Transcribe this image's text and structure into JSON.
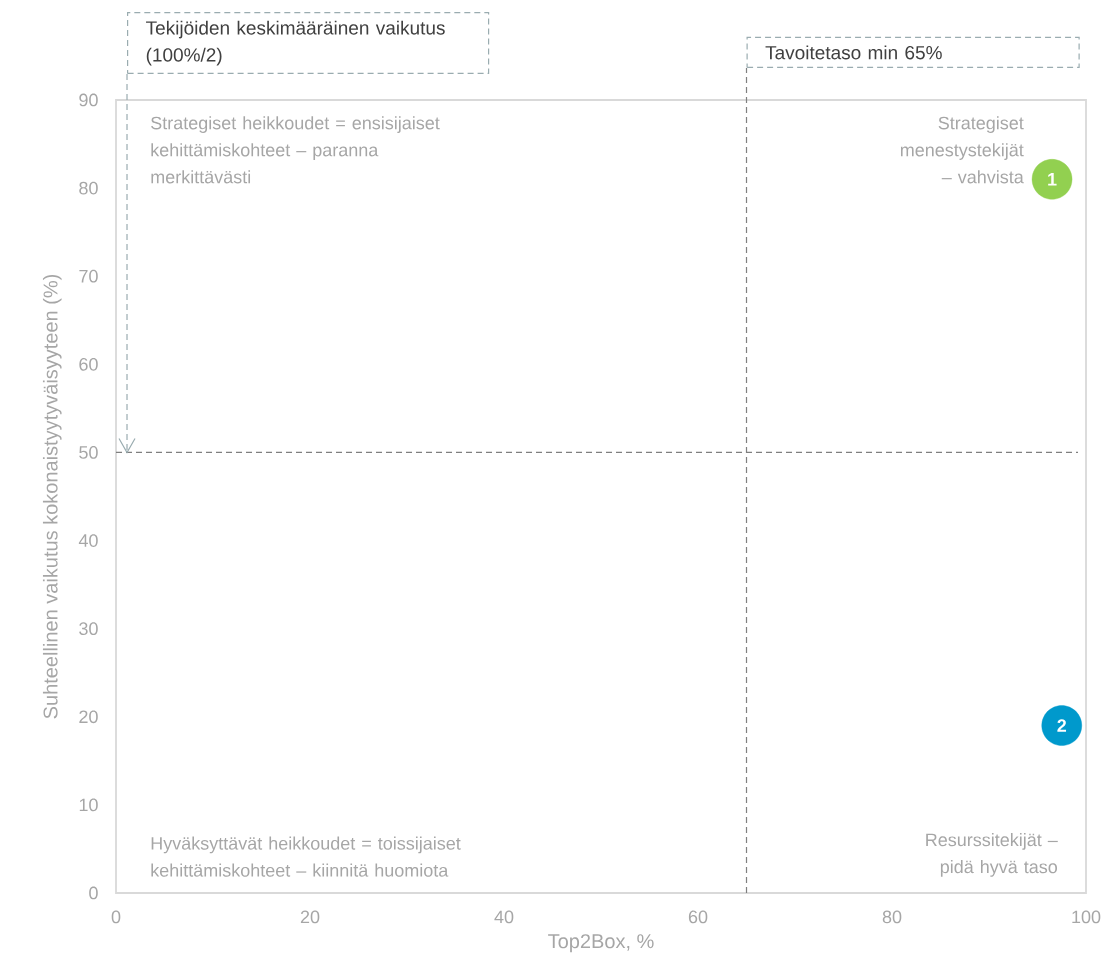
{
  "chart_data": {
    "type": "scatter",
    "xlabel": "Top2Box, %",
    "ylabel": "Suhteellinen vaikutus kokonaistyytyväisyyteen (%)",
    "xlim": [
      0,
      100
    ],
    "ylim": [
      0,
      90
    ],
    "xticks": [
      0,
      20,
      40,
      60,
      80,
      100
    ],
    "yticks": [
      0,
      10,
      20,
      30,
      40,
      50,
      60,
      70,
      80,
      90
    ],
    "grid": false,
    "marker": "circle",
    "series": [
      {
        "x": [
          96.5,
          97.5
        ],
        "values": [
          81,
          19
        ],
        "colors": [
          "#92d050",
          "#0099cc"
        ]
      }
    ],
    "annotations": [
      {
        "text": "1",
        "x": 96.5,
        "y": 81
      },
      {
        "text": "2",
        "x": 97.5,
        "y": 19
      },
      "Strategiset heikkoudet = ensisijaiset kehittämiskohteet – paranna merkittävästi",
      "Strategiset menestystekijät – vahvista",
      "Hyväksyttävät heikkoudet = toissijaiset kehittämiskohteet – kiinnitä huomiota",
      "Resurssitekijät – pidä hyvä taso"
    ],
    "ref_lines": [
      {
        "axis": "y",
        "value": 50,
        "label": "Tekijöiden keskimääräinen vaikutus (100%/2)",
        "color": "#7f7f7f",
        "line_style": "dashed"
      },
      {
        "axis": "x",
        "value": 65,
        "label": "Tavoitetaso min 65%",
        "color": "#7f7f7f",
        "line_style": "dashed"
      }
    ]
  }
}
